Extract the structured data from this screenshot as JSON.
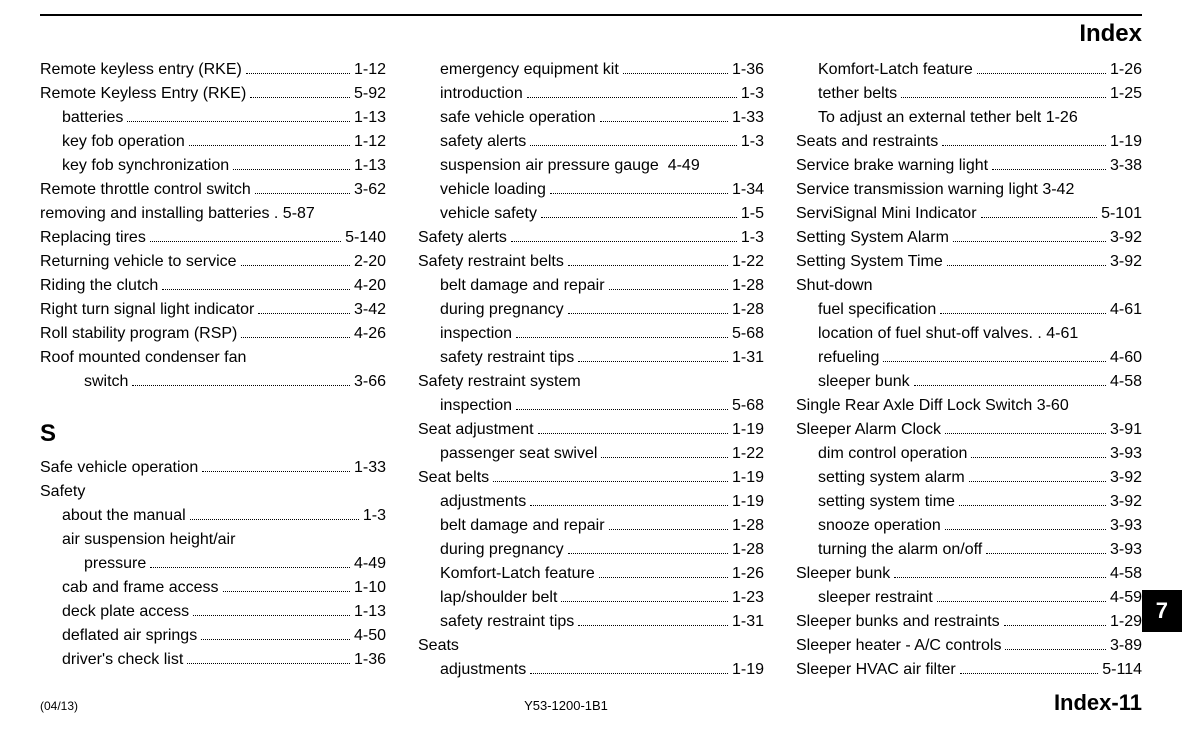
{
  "document": {
    "header_title": "Index",
    "footer": {
      "left": "(04/13)",
      "center": "Y53-1200-1B1",
      "right": "Index-11"
    },
    "side_tab": "7",
    "columns": [
      {
        "items": [
          {
            "kind": "entry",
            "text": "Remote keyless entry (RKE)",
            "page": "1-12"
          },
          {
            "kind": "entry",
            "text": "Remote Keyless Entry (RKE)",
            "page": "5-92"
          },
          {
            "kind": "sub",
            "text": "batteries",
            "page": "1-13"
          },
          {
            "kind": "sub",
            "text": "key fob operation",
            "page": "1-12"
          },
          {
            "kind": "sub",
            "text": "key fob synchronization",
            "page": "1-13"
          },
          {
            "kind": "entry",
            "text": "Remote throttle control switch",
            "page": "3-62"
          },
          {
            "kind": "entry",
            "text": "removing and installing batteries",
            "page": "5-87",
            "no_leader": true,
            "sep": " . "
          },
          {
            "kind": "entry",
            "text": "Replacing tires",
            "page": "5-140"
          },
          {
            "kind": "entry",
            "text": "Returning vehicle to service",
            "page": "2-20"
          },
          {
            "kind": "entry",
            "text": "Riding the clutch",
            "page": "4-20"
          },
          {
            "kind": "entry",
            "text": "Right turn signal light indicator",
            "page": "3-42"
          },
          {
            "kind": "entry",
            "text": "Roll stability program (RSP)",
            "page": "4-26"
          },
          {
            "kind": "wrap",
            "line1": "Roof mounted condenser fan",
            "line2": "switch",
            "page": "3-66"
          },
          {
            "kind": "section",
            "text": "S"
          },
          {
            "kind": "entry",
            "text": "Safe vehicle operation",
            "page": "1-33"
          },
          {
            "kind": "label",
            "text": "Safety"
          },
          {
            "kind": "sub",
            "text": "about the manual",
            "page": "1-3"
          },
          {
            "kind": "wrap",
            "sub": true,
            "line1": "air suspension height/air",
            "line2": "pressure",
            "page": "4-49"
          },
          {
            "kind": "sub",
            "text": "cab and frame access",
            "page": "1-10"
          },
          {
            "kind": "sub",
            "text": "deck plate access",
            "page": "1-13"
          },
          {
            "kind": "sub",
            "text": "deflated air springs",
            "page": "4-50"
          },
          {
            "kind": "sub",
            "text": "driver's check list",
            "page": "1-36"
          }
        ]
      },
      {
        "items": [
          {
            "kind": "sub",
            "text": "emergency equipment kit",
            "page": "1-36"
          },
          {
            "kind": "sub",
            "text": "introduction",
            "page": "1-3"
          },
          {
            "kind": "sub",
            "text": "safe vehicle operation",
            "page": "1-33"
          },
          {
            "kind": "sub",
            "text": "safety alerts",
            "page": "1-3"
          },
          {
            "kind": "sub",
            "text": "suspension air pressure gauge",
            "page": "4-49",
            "no_leader": true,
            "sep": "  "
          },
          {
            "kind": "sub",
            "text": "vehicle loading",
            "page": "1-34"
          },
          {
            "kind": "sub",
            "text": "vehicle safety",
            "page": "1-5"
          },
          {
            "kind": "entry",
            "text": "Safety alerts",
            "page": "1-3"
          },
          {
            "kind": "entry",
            "text": "Safety restraint belts",
            "page": "1-22"
          },
          {
            "kind": "sub",
            "text": "belt damage and repair",
            "page": "1-28"
          },
          {
            "kind": "sub",
            "text": "during pregnancy",
            "page": "1-28"
          },
          {
            "kind": "sub",
            "text": "inspection",
            "page": "5-68"
          },
          {
            "kind": "sub",
            "text": "safety restraint tips",
            "page": "1-31"
          },
          {
            "kind": "label",
            "text": "Safety restraint system"
          },
          {
            "kind": "sub",
            "text": "inspection",
            "page": "5-68"
          },
          {
            "kind": "entry",
            "text": "Seat adjustment",
            "page": "1-19"
          },
          {
            "kind": "sub",
            "text": "passenger seat swivel",
            "page": "1-22"
          },
          {
            "kind": "entry",
            "text": "Seat belts",
            "page": "1-19"
          },
          {
            "kind": "sub",
            "text": "adjustments",
            "page": "1-19"
          },
          {
            "kind": "sub",
            "text": "belt damage and repair",
            "page": "1-28"
          },
          {
            "kind": "sub",
            "text": "during pregnancy",
            "page": "1-28"
          },
          {
            "kind": "sub",
            "text": "Komfort-Latch feature",
            "page": "1-26"
          },
          {
            "kind": "sub",
            "text": "lap/shoulder belt",
            "page": "1-23"
          },
          {
            "kind": "sub",
            "text": "safety restraint tips",
            "page": "1-31"
          },
          {
            "kind": "label",
            "text": "Seats"
          },
          {
            "kind": "sub",
            "text": "adjustments",
            "page": "1-19"
          }
        ]
      },
      {
        "items": [
          {
            "kind": "sub",
            "text": "Komfort-Latch feature",
            "page": "1-26"
          },
          {
            "kind": "sub",
            "text": "tether belts",
            "page": "1-25"
          },
          {
            "kind": "sub",
            "text": "To adjust an external tether belt",
            "page": "1-26",
            "no_leader": true,
            "sep": " "
          },
          {
            "kind": "entry",
            "text": "Seats and restraints",
            "page": "1-19"
          },
          {
            "kind": "entry",
            "text": "Service brake warning light",
            "page": "3-38"
          },
          {
            "kind": "entry",
            "text": "Service transmission warning light",
            "page": "3-42",
            "no_leader": true,
            "sep": " "
          },
          {
            "kind": "entry",
            "text": "ServiSignal Mini Indicator",
            "page": "5-101"
          },
          {
            "kind": "entry",
            "text": "Setting System Alarm",
            "page": "3-92"
          },
          {
            "kind": "entry",
            "text": "Setting System Time",
            "page": "3-92"
          },
          {
            "kind": "label",
            "text": "Shut-down"
          },
          {
            "kind": "sub",
            "text": "fuel specification",
            "page": "4-61"
          },
          {
            "kind": "sub",
            "text": "location of fuel shut-off valves",
            "page": "4-61",
            "no_leader": true,
            "sep": ". . "
          },
          {
            "kind": "sub",
            "text": "refueling",
            "page": "4-60"
          },
          {
            "kind": "sub",
            "text": "sleeper bunk",
            "page": "4-58"
          },
          {
            "kind": "entry",
            "text": "Single Rear Axle Diff Lock Switch",
            "page": "3-60",
            "no_leader": true,
            "sep": " "
          },
          {
            "kind": "entry",
            "text": "Sleeper Alarm Clock",
            "page": "3-91"
          },
          {
            "kind": "sub",
            "text": "dim control operation",
            "page": "3-93"
          },
          {
            "kind": "sub",
            "text": "setting system alarm",
            "page": "3-92"
          },
          {
            "kind": "sub",
            "text": "setting system time",
            "page": "3-92"
          },
          {
            "kind": "sub",
            "text": "snooze operation",
            "page": "3-93"
          },
          {
            "kind": "sub",
            "text": "turning the alarm on/off",
            "page": "3-93"
          },
          {
            "kind": "entry",
            "text": "Sleeper bunk",
            "page": "4-58"
          },
          {
            "kind": "sub",
            "text": "sleeper restraint",
            "page": "4-59"
          },
          {
            "kind": "entry",
            "text": "Sleeper bunks and restraints",
            "page": "1-29"
          },
          {
            "kind": "entry",
            "text": "Sleeper heater - A/C controls",
            "page": "3-89"
          },
          {
            "kind": "entry",
            "text": "Sleeper HVAC air filter",
            "page": "5-114"
          }
        ]
      }
    ]
  }
}
